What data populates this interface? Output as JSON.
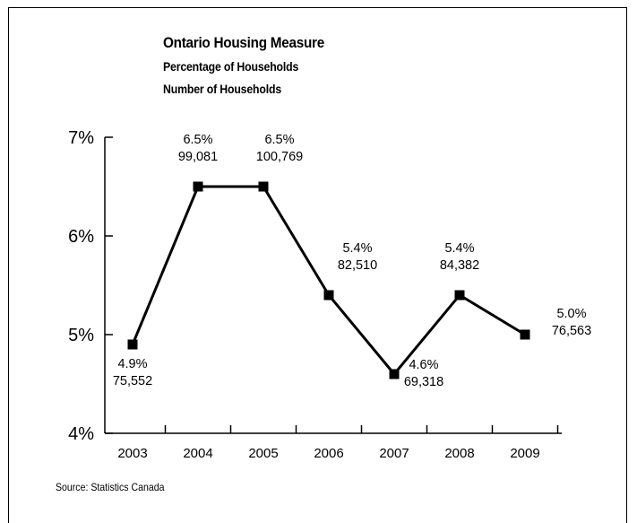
{
  "chart_data": {
    "type": "line",
    "title": "Ontario Housing Measure",
    "subtitles": [
      "Percentage of Households",
      "Number of Households"
    ],
    "x": [
      "2003",
      "2004",
      "2005",
      "2006",
      "2007",
      "2008",
      "2009"
    ],
    "series": [
      {
        "values": [
          4.9,
          6.5,
          6.5,
          5.4,
          4.6,
          5.4,
          5.0
        ],
        "households": [
          "75,552",
          "99,081",
          "100,769",
          "82,510",
          "69,318",
          "84,382",
          "76,563"
        ]
      }
    ],
    "percent_labels": [
      "4.9%",
      "6.5%",
      "6.5%",
      "5.4%",
      "4.6%",
      "5.4%",
      "5.0%"
    ],
    "y_ticks": [
      "4%",
      "5%",
      "6%",
      "7%"
    ],
    "ylim": [
      4,
      7
    ],
    "grid": false,
    "source": "Source: Statistics Canada",
    "colors": {
      "line": "#000000",
      "marker": "#000000"
    }
  }
}
